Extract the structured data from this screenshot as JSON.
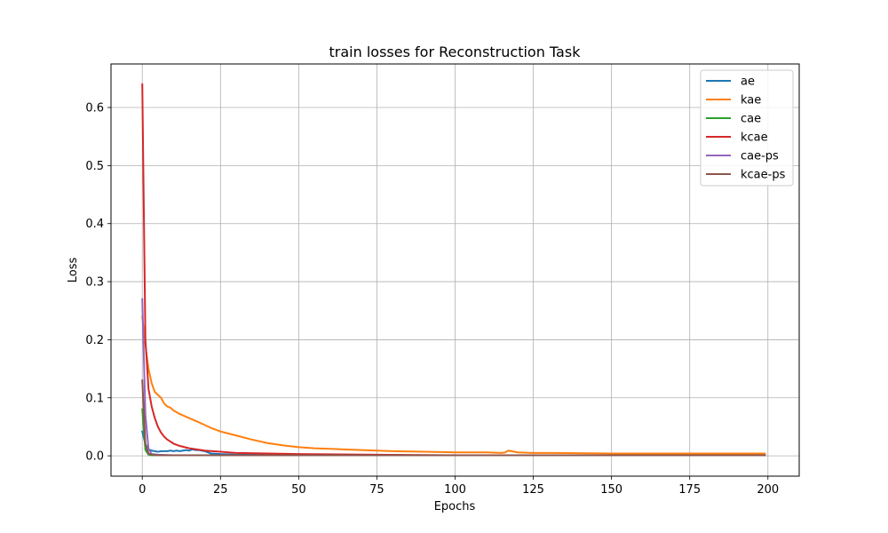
{
  "chart_data": {
    "type": "line",
    "title": "train losses for Reconstruction Task",
    "xlabel": "Epochs",
    "ylabel": "Loss",
    "xlim": [
      -10,
      210
    ],
    "ylim": [
      -0.035,
      0.675
    ],
    "xticks": [
      0,
      25,
      50,
      75,
      100,
      125,
      150,
      175,
      200
    ],
    "yticks": [
      0.0,
      0.1,
      0.2,
      0.3,
      0.4,
      0.5,
      0.6
    ],
    "ytick_labels": [
      "0.0",
      "0.1",
      "0.2",
      "0.3",
      "0.4",
      "0.5",
      "0.6"
    ],
    "grid": true,
    "legend": "top-right",
    "series": [
      {
        "name": "ae",
        "color": "#1f77b4",
        "x": [
          0,
          1,
          2,
          3,
          4,
          5,
          6,
          7,
          8,
          9,
          10,
          11,
          12,
          13,
          14,
          15,
          16,
          17,
          18,
          19,
          20,
          22,
          25,
          30,
          40,
          60,
          100,
          150,
          199
        ],
        "y": [
          0.042,
          0.02,
          0.011,
          0.009,
          0.008,
          0.007,
          0.008,
          0.008,
          0.008,
          0.009,
          0.008,
          0.009,
          0.008,
          0.009,
          0.01,
          0.009,
          0.011,
          0.01,
          0.01,
          0.009,
          0.008,
          0.004,
          0.003,
          0.002,
          0.002,
          0.001,
          0.001,
          0.001,
          0.001
        ]
      },
      {
        "name": "kae",
        "color": "#ff7f0e",
        "x": [
          0,
          1,
          2,
          3,
          4,
          5,
          6,
          7,
          8,
          9,
          10,
          12,
          15,
          18,
          20,
          22,
          25,
          30,
          35,
          40,
          45,
          50,
          55,
          60,
          65,
          70,
          75,
          80,
          90,
          100,
          110,
          115,
          116,
          117,
          118,
          120,
          125,
          130,
          150,
          175,
          199
        ],
        "y": [
          0.24,
          0.19,
          0.15,
          0.125,
          0.11,
          0.105,
          0.1,
          0.09,
          0.085,
          0.083,
          0.078,
          0.072,
          0.065,
          0.058,
          0.053,
          0.048,
          0.042,
          0.035,
          0.028,
          0.022,
          0.018,
          0.015,
          0.013,
          0.012,
          0.011,
          0.01,
          0.009,
          0.008,
          0.007,
          0.006,
          0.006,
          0.005,
          0.006,
          0.009,
          0.008,
          0.006,
          0.005,
          0.005,
          0.004,
          0.004,
          0.004
        ]
      },
      {
        "name": "cae",
        "color": "#2ca02c",
        "x": [
          0,
          1,
          2,
          3,
          5,
          10,
          50,
          100,
          150,
          199
        ],
        "y": [
          0.08,
          0.01,
          0.002,
          0.001,
          0.001,
          0.001,
          0.001,
          0.001,
          0.001,
          0.001
        ]
      },
      {
        "name": "kcae",
        "color": "#d62728",
        "x": [
          0,
          1,
          2,
          3,
          4,
          5,
          6,
          7,
          8,
          10,
          12,
          15,
          20,
          25,
          30,
          40,
          50,
          75,
          100,
          150,
          199
        ],
        "y": [
          0.64,
          0.2,
          0.115,
          0.085,
          0.065,
          0.05,
          0.04,
          0.033,
          0.028,
          0.021,
          0.017,
          0.013,
          0.009,
          0.007,
          0.005,
          0.004,
          0.003,
          0.002,
          0.001,
          0.001,
          0.001
        ]
      },
      {
        "name": "cae-ps",
        "color": "#9467bd",
        "x": [
          0,
          1,
          2,
          3,
          5,
          10,
          50,
          100,
          150,
          199
        ],
        "y": [
          0.27,
          0.07,
          0.012,
          0.003,
          0.002,
          0.001,
          0.001,
          0.001,
          0.001,
          0.001
        ]
      },
      {
        "name": "kcae-ps",
        "color": "#8c564b",
        "x": [
          0,
          1,
          2,
          3,
          5,
          10,
          50,
          100,
          150,
          199
        ],
        "y": [
          0.13,
          0.02,
          0.004,
          0.002,
          0.001,
          0.001,
          0.001,
          0.001,
          0.001,
          0.001
        ]
      }
    ]
  }
}
